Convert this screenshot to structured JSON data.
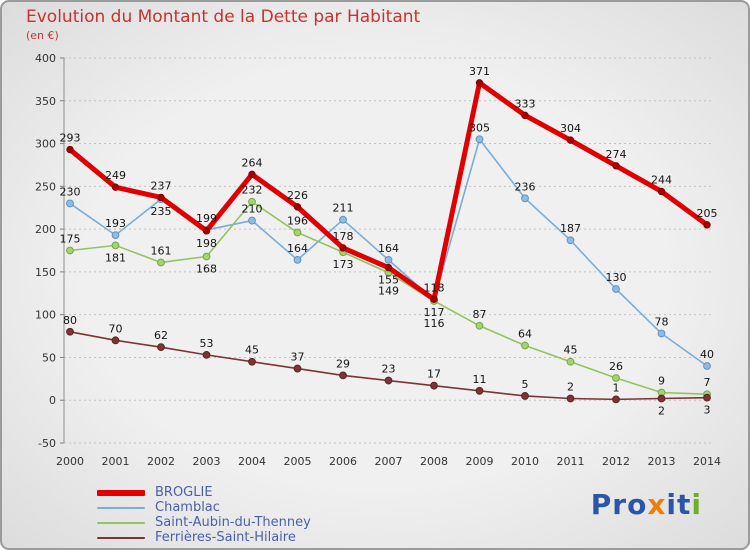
{
  "chart_data": {
    "type": "line",
    "title": "Evolution du Montant de la Dette par Habitant",
    "subtitle": "(en €)",
    "x": [
      2000,
      2001,
      2002,
      2003,
      2004,
      2005,
      2006,
      2007,
      2008,
      2009,
      2010,
      2011,
      2012,
      2013,
      2014
    ],
    "ylim": [
      -50,
      400
    ],
    "ytick_step": 50,
    "grid": true,
    "legend_position": "bottom-left",
    "series": [
      {
        "name": "BROGLIE",
        "color": "#e10000",
        "marker": "#a50000",
        "edge": "#8c0000",
        "width": 5,
        "values": [
          293,
          249,
          237,
          198,
          264,
          226,
          178,
          155,
          118,
          371,
          333,
          304,
          274,
          244,
          205
        ]
      },
      {
        "name": "Chamblac",
        "color": "#7aadd8",
        "marker": "#8fbce2",
        "edge": "#5f93c4",
        "width": 1.6,
        "values": [
          230,
          193,
          235,
          199,
          210,
          164,
          211,
          164,
          117,
          305,
          236,
          187,
          130,
          78,
          40
        ]
      },
      {
        "name": "Saint-Aubin-du-Thenney",
        "color": "#94c45e",
        "marker": "#a8d077",
        "edge": "#76a83f",
        "width": 1.6,
        "values": [
          175,
          181,
          161,
          168,
          232,
          196,
          173,
          149,
          116,
          87,
          64,
          45,
          26,
          9,
          7
        ]
      },
      {
        "name": "Ferrières-Saint-Hilaire",
        "color": "#7c3434",
        "marker": "#7c3434",
        "edge": "#5e2424",
        "width": 1.6,
        "values": [
          80,
          70,
          62,
          53,
          45,
          37,
          29,
          23,
          17,
          11,
          5,
          2,
          1,
          2,
          3
        ]
      }
    ]
  },
  "logo": {
    "letters": [
      {
        "ch": "P",
        "color": "#2b55a7"
      },
      {
        "ch": "r",
        "color": "#2b55a7"
      },
      {
        "ch": "o",
        "color": "#2b55a7"
      },
      {
        "ch": "x",
        "color": "#ef7d08"
      },
      {
        "ch": "i",
        "color": "#2b55a7"
      },
      {
        "ch": "t",
        "color": "#2b55a7"
      },
      {
        "ch": "i",
        "color": "#6fae2a"
      }
    ]
  }
}
